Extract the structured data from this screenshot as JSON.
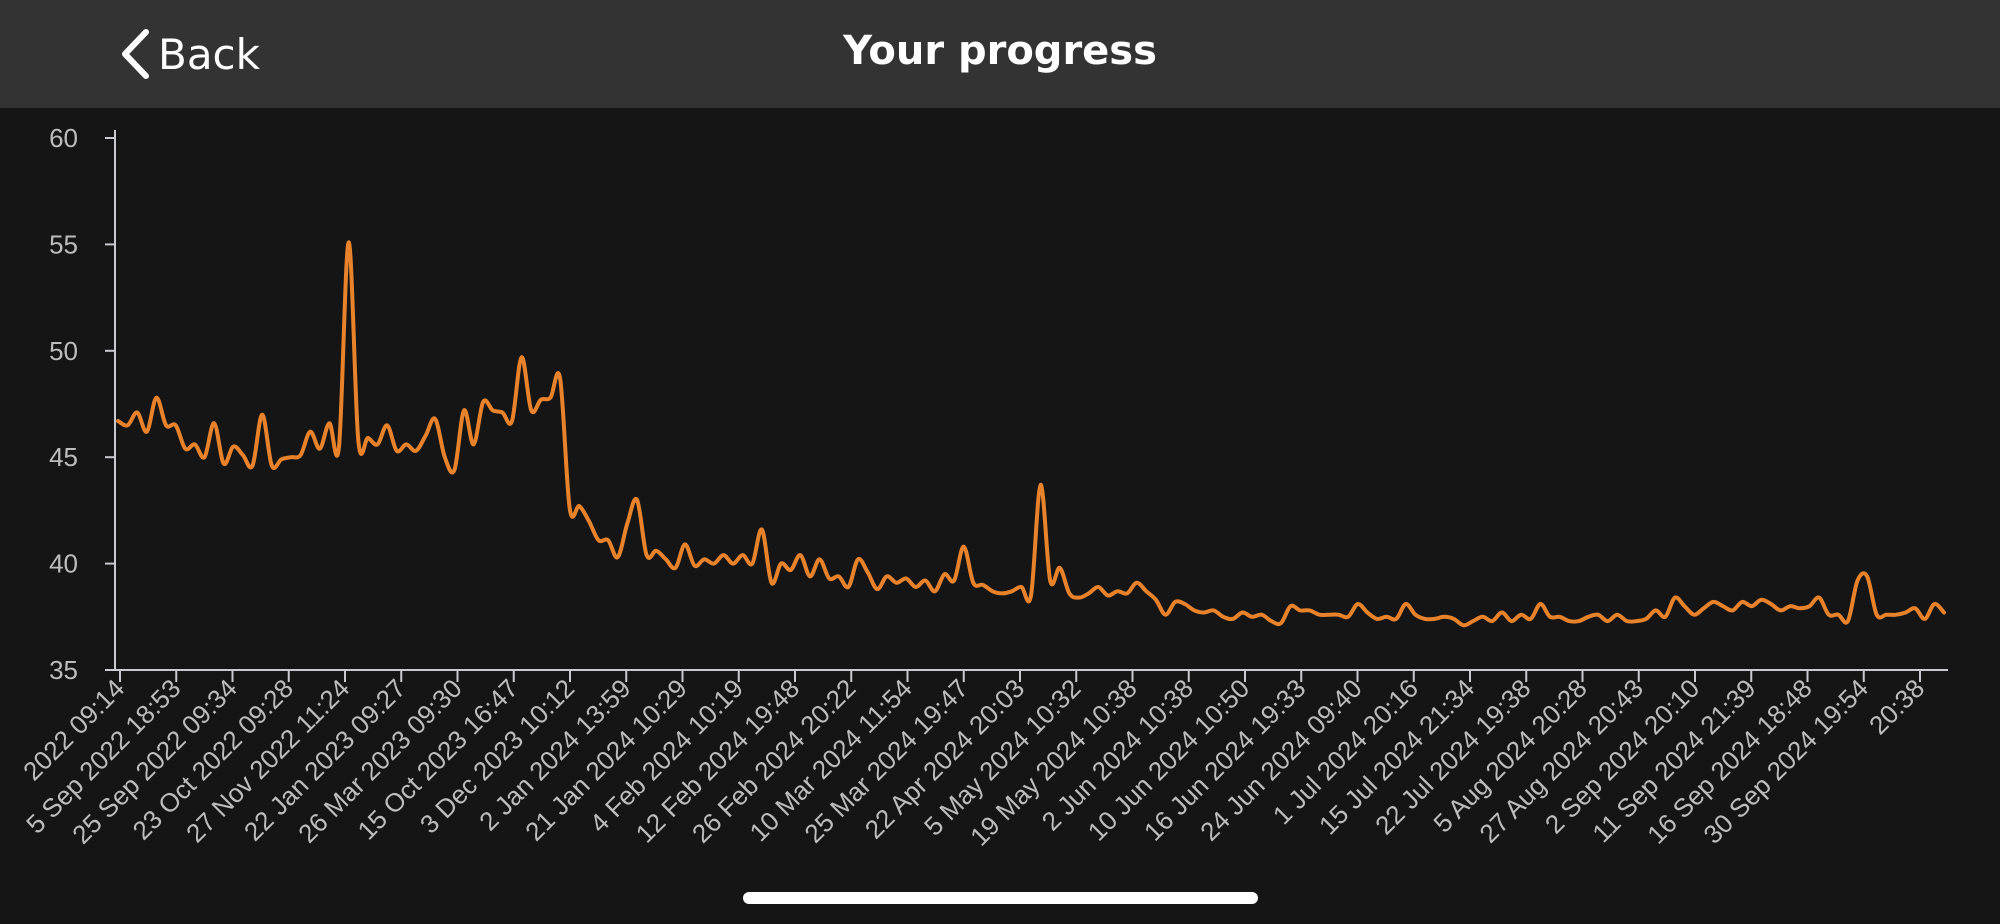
{
  "header": {
    "back_label": "Back",
    "title": "Your progress"
  },
  "colors": {
    "background": "#151515",
    "header_bg": "#333333",
    "line": "#e8832c",
    "axis": "#c9c9d0",
    "text": "#bdbdbd"
  },
  "icons": {
    "back": "chevron-left-icon"
  },
  "chart_data": {
    "type": "line",
    "title": "",
    "xlabel": "",
    "ylabel": "",
    "ylim": [
      35,
      60
    ],
    "yticks": [
      35,
      40,
      45,
      50,
      55,
      60
    ],
    "grid": false,
    "legend": "none",
    "x_tick_labels": [
      "2022 09:14",
      "5 Sep 2022 18:53",
      "25 Sep 2022 09:34",
      "23 Oct 2022 09:28",
      "27 Nov 2022 11:24",
      "22 Jan 2023 09:27",
      "26 Mar 2023 09:30",
      "15 Oct 2023 16:47",
      "3 Dec 2023 10:12",
      "2 Jan 2024 13:59",
      "21 Jan 2024 10:29",
      "4 Feb 2024 10:19",
      "12 Feb 2024 19:48",
      "26 Feb 2024 20:22",
      "10 Mar 2024 11:54",
      "25 Mar 2024 19:47",
      "22 Apr 2024 20:03",
      "5 May 2024 10:32",
      "19 May 2024 10:38",
      "2 Jun 2024 10:38",
      "10 Jun 2024 10:50",
      "16 Jun 2024 19:33",
      "24 Jun 2024 09:40",
      "1 Jul 2024 20:16",
      "15 Jul 2024 21:34",
      "22 Jul 2024 19:38",
      "5 Aug 2024 20:28",
      "27 Aug 2024 20:43",
      "2 Sep 2024 20:10",
      "11 Sep 2024 21:39",
      "16 Sep 2024 18:48",
      "30 Sep 2024 19:54",
      "20:38"
    ],
    "series": [
      {
        "values": [
          46.7,
          46.5,
          47.1,
          46.2,
          47.8,
          46.5,
          46.5,
          45.4,
          45.6,
          45.0,
          46.6,
          44.7,
          45.5,
          45.1,
          44.6,
          47.0,
          44.6,
          44.9,
          45.0,
          45.1,
          46.2,
          45.4,
          46.6,
          45.5,
          55.1,
          45.8,
          45.9,
          45.6,
          46.5,
          45.3,
          45.6,
          45.3,
          46.0,
          46.8,
          45.0,
          44.4,
          47.2,
          45.6,
          47.6,
          47.2,
          47.1,
          46.7,
          49.7,
          47.2,
          47.7,
          47.8,
          48.7,
          42.6,
          42.7,
          42.0,
          41.1,
          41.1,
          40.3,
          41.9,
          43.0,
          40.4,
          40.6,
          40.2,
          39.8,
          40.9,
          39.9,
          40.2,
          40.0,
          40.4,
          40.0,
          40.4,
          40.0,
          41.6,
          39.1,
          40.0,
          39.7,
          40.4,
          39.4,
          40.2,
          39.3,
          39.4,
          38.9,
          40.2,
          39.6,
          38.8,
          39.4,
          39.1,
          39.3,
          38.9,
          39.2,
          38.7,
          39.5,
          39.2,
          40.8,
          39.1,
          39.0,
          38.7,
          38.6,
          38.7,
          38.9,
          38.5,
          43.7,
          39.2,
          39.8,
          38.6,
          38.4,
          38.6,
          38.9,
          38.5,
          38.7,
          38.6,
          39.1,
          38.7,
          38.3,
          37.6,
          38.2,
          38.1,
          37.8,
          37.7,
          37.8,
          37.5,
          37.4,
          37.7,
          37.5,
          37.6,
          37.3,
          37.2,
          38.0,
          37.8,
          37.8,
          37.6,
          37.6,
          37.6,
          37.5,
          38.1,
          37.7,
          37.4,
          37.5,
          37.4,
          38.1,
          37.6,
          37.4,
          37.4,
          37.5,
          37.4,
          37.1,
          37.3,
          37.5,
          37.3,
          37.7,
          37.3,
          37.6,
          37.4,
          38.1,
          37.5,
          37.5,
          37.3,
          37.3,
          37.5,
          37.6,
          37.3,
          37.6,
          37.3,
          37.3,
          37.4,
          37.8,
          37.5,
          38.4,
          38.0,
          37.6,
          37.9,
          38.2,
          38.0,
          37.8,
          38.2,
          38.0,
          38.3,
          38.1,
          37.8,
          38.0,
          37.9,
          38.0,
          38.4,
          37.6,
          37.6,
          37.3,
          39.2,
          39.4,
          37.6,
          37.6,
          37.6,
          37.7,
          37.9,
          37.4,
          38.1,
          37.7
        ]
      }
    ]
  }
}
